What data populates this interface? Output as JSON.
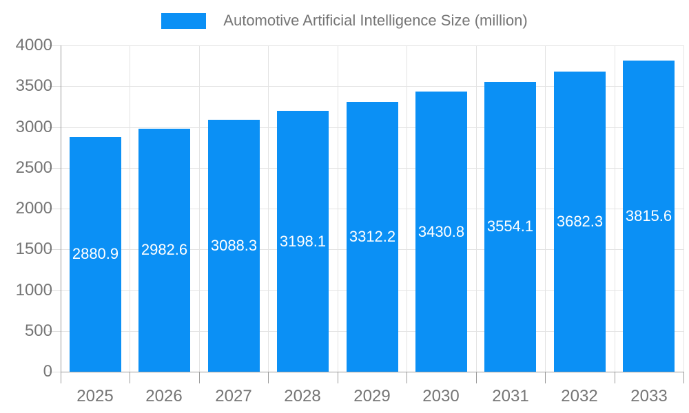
{
  "title": "Automotive Artificial Intelligence Size (million)",
  "legend": {
    "label": "Automotive Artificial Intelligence Size (million)"
  },
  "colors": {
    "bar": "#0b90f5",
    "grid": "#e3e3e3",
    "axis": "#999999",
    "axis_text": "#757575",
    "bar_label_text": "#ffffff",
    "background": "#ffffff"
  },
  "chart_data": {
    "type": "bar",
    "title": "Automotive Artificial Intelligence Size (million)",
    "categories": [
      "2025",
      "2026",
      "2027",
      "2028",
      "2029",
      "2030",
      "2031",
      "2032",
      "2033"
    ],
    "series": [
      {
        "name": "Automotive Artificial Intelligence Size (million)",
        "values": [
          2880.9,
          2982.6,
          3088.3,
          3198.1,
          3312.2,
          3430.8,
          3554.1,
          3682.3,
          3815.6
        ]
      }
    ],
    "value_labels": [
      "2880.9",
      "2982.6",
      "3088.3",
      "3198.1",
      "3312.2",
      "3430.8",
      "3554.1",
      "3682.3",
      "3815.6"
    ],
    "xlabel": "",
    "ylabel": "",
    "ylim": [
      0,
      4000
    ],
    "ytick_interval": 500,
    "yticks": [
      "0",
      "500",
      "1000",
      "1500",
      "2000",
      "2500",
      "3000",
      "3500",
      "4000"
    ],
    "grid": true,
    "legend_position": "top",
    "bar_labels_visible": true,
    "bar_label_position": "middle-of-bar"
  }
}
